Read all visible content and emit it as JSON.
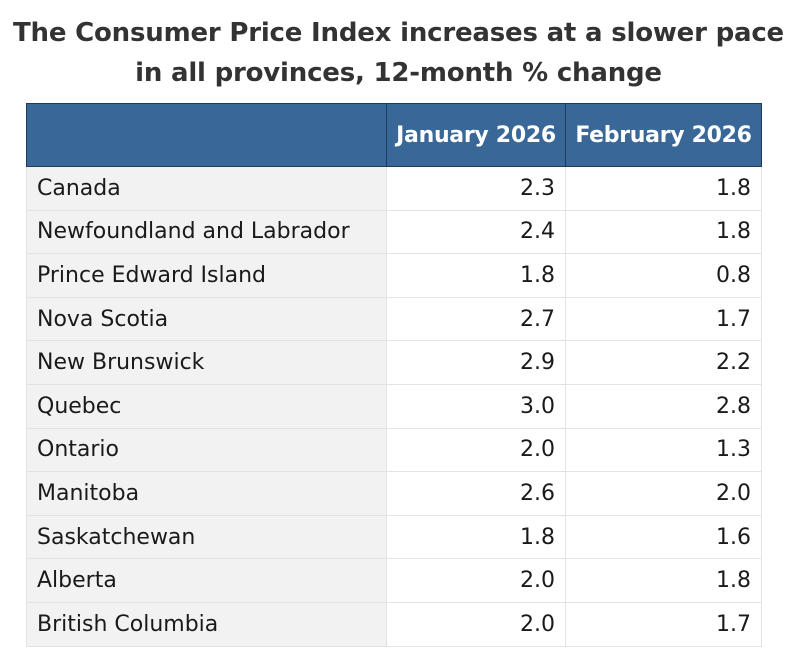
{
  "title_lines": [
    "The Consumer Price Index increases at a slower pace",
    "in all provinces, 12-month % change"
  ],
  "colors": {
    "header_bg": "#386798",
    "header_text": "#ffffff",
    "rowname_bg": "#f2f2f2",
    "title_text": "#333333"
  },
  "chart_data": {
    "type": "table",
    "title": "The Consumer Price Index increases at a slower pace in all provinces, 12-month % change",
    "columns": [
      "",
      "January 2026",
      "February 2026"
    ],
    "rows": [
      {
        "label": "Canada",
        "values": [
          "2.3",
          "1.8"
        ]
      },
      {
        "label": "Newfoundland and Labrador",
        "values": [
          "2.4",
          "1.8"
        ]
      },
      {
        "label": "Prince Edward Island",
        "values": [
          "1.8",
          "0.8"
        ]
      },
      {
        "label": "Nova Scotia",
        "values": [
          "2.7",
          "1.7"
        ]
      },
      {
        "label": "New Brunswick",
        "values": [
          "2.9",
          "2.2"
        ]
      },
      {
        "label": "Quebec",
        "values": [
          "3.0",
          "2.8"
        ]
      },
      {
        "label": "Ontario",
        "values": [
          "2.0",
          "1.3"
        ]
      },
      {
        "label": "Manitoba",
        "values": [
          "2.6",
          "2.0"
        ]
      },
      {
        "label": "Saskatchewan",
        "values": [
          "1.8",
          "1.6"
        ]
      },
      {
        "label": "Alberta",
        "values": [
          "2.0",
          "1.8"
        ]
      },
      {
        "label": "British Columbia",
        "values": [
          "2.0",
          "1.7"
        ]
      }
    ]
  }
}
